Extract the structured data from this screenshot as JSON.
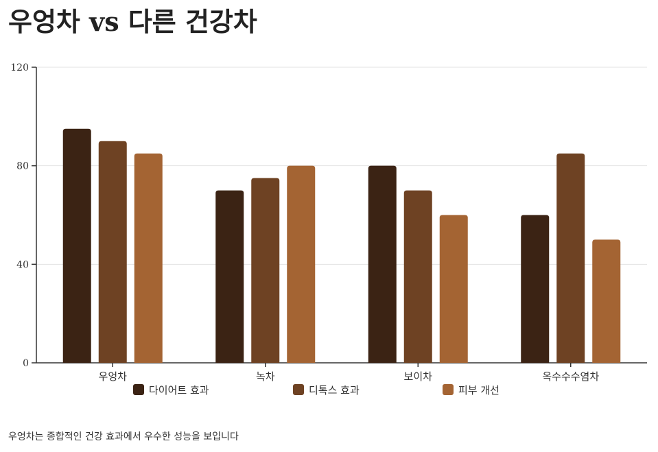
{
  "title": "우엉차 vs 다른 건강차",
  "footer_note": "우엉차는 종합적인 건강 효과에서 우수한 성능을 보입니다",
  "chart_data": {
    "type": "bar",
    "title": "우엉차 vs 다른 건강차",
    "xlabel": "",
    "ylabel": "",
    "categories": [
      "우엉차",
      "녹차",
      "보이차",
      "옥수수수염차"
    ],
    "series": [
      {
        "name": "다이어트 효과",
        "values": [
          95,
          70,
          80,
          60
        ],
        "color": "#3b2314"
      },
      {
        "name": "디톡스 효과",
        "values": [
          90,
          75,
          70,
          85
        ],
        "color": "#6e4223"
      },
      {
        "name": "피부 개선",
        "values": [
          85,
          80,
          60,
          50
        ],
        "color": "#a46433"
      }
    ],
    "ylim": [
      0,
      120
    ],
    "yticks": [
      0,
      40,
      80,
      120
    ],
    "grid": true,
    "legend_position": "bottom"
  }
}
